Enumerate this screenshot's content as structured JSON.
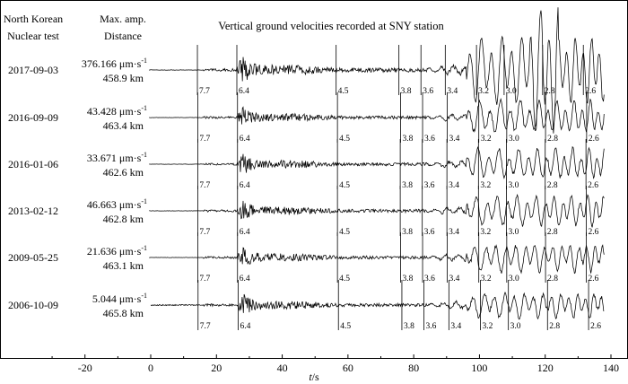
{
  "chart_data": {
    "type": "line",
    "title": "Vertical ground velocities recorded at SNY station",
    "xlabel": "t/s",
    "xlabel_var": "t",
    "xlabel_unit": "/s",
    "xlim": [
      -35,
      140
    ],
    "xticks": [
      -20,
      0,
      20,
      40,
      60,
      80,
      100,
      120,
      140
    ],
    "column_headers": {
      "test": [
        "North Korean",
        "Nuclear test"
      ],
      "amp": [
        "Max. amp.",
        "Distance"
      ]
    },
    "velocity_marker_labels": [
      "7.7",
      "6.4",
      "4.5",
      "3.8",
      "3.6",
      "3.4",
      "3.2",
      "3.0",
      "2.8",
      "2.6"
    ],
    "series": [
      {
        "name": "2017-09-03",
        "max_amp": "376.166 μm·s",
        "amp_exp": "-1",
        "distance": "458.9 km",
        "markers": [
          14.2,
          26.2,
          56.4,
          75.5,
          82.2,
          89.6,
          99.1,
          107.5,
          119.2,
          131.6
        ]
      },
      {
        "name": "2016-09-09",
        "max_amp": "43.428 μm·s",
        "amp_exp": "-1",
        "distance": "463.4 km",
        "markers": [
          14.3,
          26.4,
          56.8,
          76.0,
          82.7,
          90.2,
          99.8,
          108.3,
          120.1,
          132.6
        ]
      },
      {
        "name": "2016-01-06",
        "max_amp": "33.671 μm·s",
        "amp_exp": "-1",
        "distance": "462.6 km",
        "markers": [
          14.3,
          26.4,
          56.8,
          75.9,
          82.6,
          90.1,
          99.7,
          108.2,
          120.0,
          132.4
        ]
      },
      {
        "name": "2013-02-12",
        "max_amp": "46.663 μm·s",
        "amp_exp": "-1",
        "distance": "462.8 km",
        "markers": [
          14.3,
          26.4,
          56.8,
          75.9,
          82.6,
          90.1,
          99.7,
          108.2,
          120.0,
          132.5
        ]
      },
      {
        "name": "2009-05-25",
        "max_amp": "21.636 μm·s",
        "amp_exp": "-1",
        "distance": "463.1 km",
        "markers": [
          14.3,
          26.4,
          56.8,
          76.0,
          82.7,
          90.2,
          99.8,
          108.3,
          120.1,
          132.5
        ]
      },
      {
        "name": "2006-10-09",
        "max_amp": "5.044 μm·s",
        "amp_exp": "-1",
        "distance": "465.8 km",
        "markers": [
          14.4,
          26.6,
          57.1,
          76.4,
          83.1,
          90.7,
          100.3,
          108.8,
          120.7,
          133.2
        ]
      }
    ]
  }
}
